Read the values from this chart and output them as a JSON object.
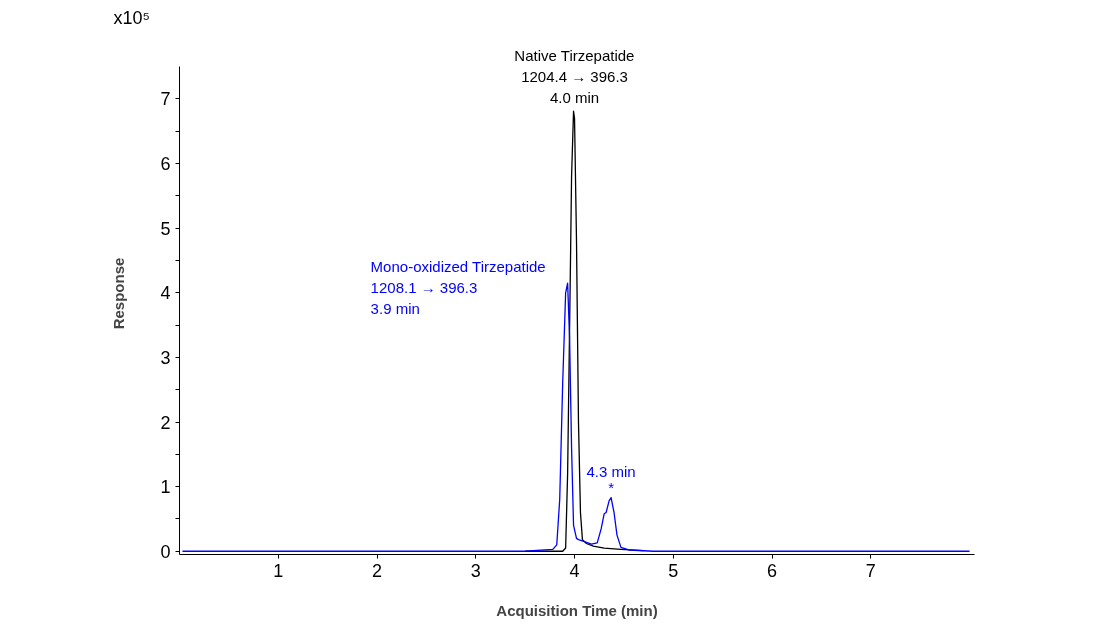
{
  "chart_data": {
    "type": "line",
    "xlabel": "Acquisition Time (min)",
    "ylabel": "Response",
    "xlim": [
      0,
      8.05
    ],
    "ylim": [
      -0.05,
      7.5
    ],
    "xticks": [
      1,
      2,
      3,
      4,
      5,
      6,
      7
    ],
    "yticks": [
      0,
      {
        "value": 0.5,
        "label": null
      },
      1,
      {
        "value": 1.5,
        "label": null
      },
      2,
      {
        "value": 2.5,
        "label": null
      },
      3,
      {
        "value": 3.5,
        "label": null
      },
      4,
      {
        "value": 4.5,
        "label": null
      },
      5,
      {
        "value": 5.5,
        "label": null
      },
      6,
      {
        "value": 6.5,
        "label": null
      },
      7
    ],
    "grid": false,
    "marker": "none",
    "line_style": "solid",
    "series": [
      {
        "color": "#000000",
        "x": [
          3.5,
          3.88,
          3.91,
          3.93,
          3.96,
          3.97,
          3.99,
          4.0,
          4.02,
          4.04,
          4.06,
          4.08,
          4.12,
          4.19,
          4.3,
          4.47,
          4.7
        ],
        "values": [
          0,
          0,
          0.05,
          1.2,
          4.6,
          5.8,
          6.81,
          6.7,
          4.8,
          2.0,
          0.6,
          0.18,
          0.12,
          0.08,
          0.05,
          0.03,
          0.01
        ]
      },
      {
        "color": "#0000ff",
        "x": [
          0.03,
          3.5,
          3.78,
          3.82,
          3.85,
          3.88,
          3.91,
          3.93,
          3.95,
          3.97,
          3.99,
          4.02,
          4.04,
          4.1,
          4.17,
          4.23,
          4.27,
          4.3,
          4.32,
          4.35,
          4.37,
          4.4,
          4.43,
          4.47,
          4.55,
          4.8,
          8.0
        ],
        "values": [
          0,
          0,
          0.03,
          0.1,
          0.8,
          2.6,
          4.0,
          4.15,
          3.3,
          1.6,
          0.4,
          0.2,
          0.18,
          0.15,
          0.11,
          0.13,
          0.35,
          0.58,
          0.6,
          0.78,
          0.83,
          0.6,
          0.25,
          0.06,
          0.02,
          0,
          0
        ]
      }
    ],
    "annotations": [
      "x10⁵",
      {
        "text": "Native Tirzepatide\n1204.4 → 396.3\n4.0 min",
        "x": 4.0,
        "y": 6.81
      },
      {
        "text": "Mono-oxidized Tirzepatide\n1208.1 → 396.3\n3.9 min",
        "x": 3.93,
        "y": 4.15
      },
      {
        "text": "4.3 min",
        "x": 4.37,
        "y": 0.83
      },
      {
        "text": "*",
        "x": 4.37,
        "y": 0.83
      }
    ]
  }
}
